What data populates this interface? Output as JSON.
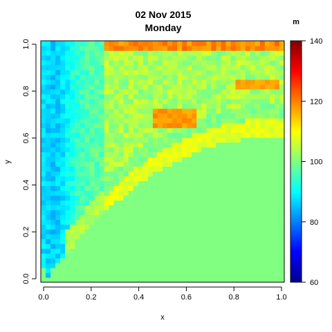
{
  "chart_data": {
    "type": "heatmap",
    "title": "02 Nov 2015",
    "subtitle": "Monday",
    "xlabel": "x",
    "ylabel": "y",
    "xlim": [
      0,
      1
    ],
    "ylim": [
      0,
      1
    ],
    "grid": false,
    "x_ticks": [
      "0.0",
      "0.2",
      "0.4",
      "0.6",
      "0.8",
      "1.0"
    ],
    "y_ticks": [
      "0.0",
      "0.2",
      "0.4",
      "0.6",
      "0.8",
      "1.0"
    ],
    "x_tick_values": [
      0,
      0.2,
      0.4,
      0.6,
      0.8,
      1.0
    ],
    "y_tick_values": [
      0,
      0.2,
      0.4,
      0.6,
      0.8,
      1.0
    ],
    "grid_size": [
      50,
      50
    ],
    "colorbar": {
      "unit": "m",
      "range": [
        60,
        140
      ],
      "ticks": [
        "60",
        "80",
        "100",
        "120",
        "140"
      ],
      "tick_values": [
        60,
        80,
        100,
        120,
        140
      ],
      "colors": [
        "#00008F",
        "#0000FF",
        "#0080FF",
        "#00FFFF",
        "#80FF80",
        "#FFFF00",
        "#FF8000",
        "#FF0000",
        "#800000"
      ]
    },
    "field": {
      "background_value": 100,
      "boundary_curve": "y = 0.62 * (1 - (1 - x)^2.2) (approx.)",
      "regions": [
        {
          "name": "left blue band",
          "x_range": [
            0.0,
            0.27
          ],
          "y_range": [
            0.05,
            1.0
          ],
          "approx_value": 90
        },
        {
          "name": "yellow ridge along boundary",
          "approx_value": 108
        },
        {
          "name": "top orange band",
          "x_range": [
            0.27,
            1.0
          ],
          "y_range": [
            0.96,
            1.0
          ],
          "approx_value": 118
        },
        {
          "name": "orange patch",
          "x_range": [
            0.45,
            0.65
          ],
          "y_range": [
            0.64,
            0.72
          ],
          "approx_value": 117
        },
        {
          "name": "orange patch right",
          "x_range": [
            0.8,
            0.98
          ],
          "y_range": [
            0.8,
            0.84
          ],
          "approx_value": 117
        }
      ]
    }
  }
}
